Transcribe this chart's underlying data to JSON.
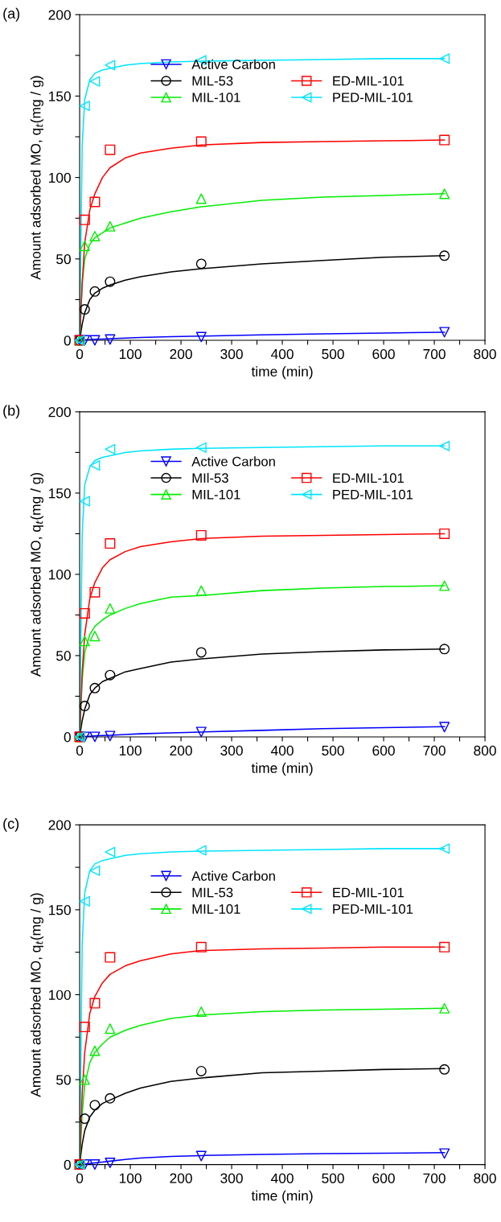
{
  "chart_data": [
    {
      "type": "scatter",
      "title": "(a)",
      "xlabel": "time (min)",
      "ylabel": "Amount adsorbed MO, q$_{t}$(mg / g)",
      "xlim": [
        0,
        800
      ],
      "ylim": [
        0,
        200
      ],
      "xticks": [
        0,
        {
          "value": 50,
          "label": null
        },
        100,
        {
          "value": 150,
          "label": null
        },
        200,
        {
          "value": 250,
          "label": null
        },
        300,
        {
          "value": 350,
          "label": null
        },
        400,
        {
          "value": 450,
          "label": null
        },
        500,
        {
          "value": 550,
          "label": null
        },
        600,
        {
          "value": 650,
          "label": null
        },
        700,
        {
          "value": 750,
          "label": null
        },
        800
      ],
      "yticks": [
        0,
        {
          "value": 25,
          "label": null
        },
        50,
        {
          "value": 75,
          "label": null
        },
        100,
        {
          "value": 125,
          "label": null
        },
        150,
        {
          "value": 175,
          "label": null
        },
        200
      ],
      "legend": "top",
      "grid": false,
      "series": [
        {
          "name": "Active Carbon",
          "color": "#0000ff",
          "marker": "triangle_down",
          "x": [
            0,
            10,
            30,
            60,
            240,
            720
          ],
          "values": [
            0,
            0,
            0,
            0.5,
            2,
            5
          ]
        },
        {
          "name": "MIL-53",
          "color": "#000000",
          "marker": "circle",
          "x": [
            0,
            10,
            30,
            60,
            240,
            720
          ],
          "values": [
            0,
            19,
            30,
            36,
            47,
            52
          ]
        },
        {
          "name": "MIL-101",
          "color": "#00ee00",
          "marker": "triangle",
          "x": [
            0,
            10,
            30,
            60,
            240,
            720
          ],
          "values": [
            0,
            58,
            64,
            70,
            87,
            90
          ]
        },
        {
          "name": "ED-MIL-101",
          "color": "#ff0000",
          "marker": "square",
          "x": [
            0,
            10,
            30,
            60,
            240,
            720
          ],
          "values": [
            0,
            74,
            85,
            117,
            122,
            123
          ]
        },
        {
          "name": "PED-MIL-101",
          "color": "#00e5ff",
          "marker": "triangle_left",
          "x": [
            0,
            10,
            30,
            60,
            240,
            720
          ],
          "values": [
            0,
            144,
            159,
            169,
            172,
            173
          ]
        },
        {
          "type": "line",
          "color": "#0000ff",
          "x": [
            0,
            5,
            10,
            20,
            30,
            45,
            60,
            90,
            120,
            180,
            240,
            360,
            480,
            600,
            720
          ],
          "values": [
            0,
            0.1,
            0.2,
            0.4,
            0.6,
            0.8,
            1,
            1.4,
            1.7,
            2.2,
            2.6,
            3.4,
            4,
            4.5,
            5
          ]
        },
        {
          "type": "line",
          "color": "#000000",
          "x": [
            0,
            5,
            10,
            20,
            30,
            45,
            60,
            90,
            120,
            180,
            240,
            360,
            480,
            600,
            720
          ],
          "values": [
            0,
            10,
            17,
            25,
            29,
            32,
            34,
            37,
            39,
            42,
            44,
            47,
            49,
            51,
            52
          ]
        },
        {
          "type": "line",
          "color": "#00ee00",
          "x": [
            0,
            5,
            10,
            20,
            30,
            45,
            60,
            90,
            120,
            180,
            240,
            360,
            480,
            600,
            720
          ],
          "values": [
            0,
            35,
            50,
            59,
            63,
            66,
            69,
            72,
            75,
            79,
            82,
            86,
            88,
            89,
            90
          ]
        },
        {
          "type": "line",
          "color": "#ff0000",
          "x": [
            0,
            5,
            10,
            20,
            30,
            45,
            60,
            90,
            120,
            180,
            240,
            360,
            480,
            600,
            720
          ],
          "values": [
            0,
            35,
            60,
            80,
            90,
            100,
            106,
            112,
            115,
            118,
            120,
            121.5,
            122,
            122.5,
            123
          ]
        },
        {
          "type": "line",
          "color": "#00e5ff",
          "x": [
            0,
            5,
            10,
            20,
            30,
            45,
            60,
            90,
            120,
            180,
            240,
            360,
            480,
            600,
            720
          ],
          "values": [
            0,
            120,
            148,
            160,
            164,
            166,
            167,
            169,
            170,
            171,
            171.5,
            172,
            172.5,
            173,
            173
          ]
        }
      ]
    },
    {
      "type": "scatter",
      "title": "(b)",
      "xlabel": "time (min)",
      "ylabel": "Amount adsorbed MO, q$_{t}$(mg / g)",
      "xlim": [
        0,
        800
      ],
      "ylim": [
        0,
        200
      ],
      "xticks": [
        0,
        {
          "value": 50,
          "label": null
        },
        100,
        {
          "value": 150,
          "label": null
        },
        200,
        {
          "value": 250,
          "label": null
        },
        300,
        {
          "value": 350,
          "label": null
        },
        400,
        {
          "value": 450,
          "label": null
        },
        500,
        {
          "value": 550,
          "label": null
        },
        600,
        {
          "value": 650,
          "label": null
        },
        700,
        {
          "value": 750,
          "label": null
        },
        800
      ],
      "yticks": [
        0,
        {
          "value": 25,
          "label": null
        },
        50,
        {
          "value": 75,
          "label": null
        },
        100,
        {
          "value": 125,
          "label": null
        },
        150,
        {
          "value": 175,
          "label": null
        },
        200
      ],
      "legend": "top",
      "grid": false,
      "series": [
        {
          "name": "Active Carbon",
          "color": "#0000ff",
          "marker": "triangle_down",
          "x": [
            0,
            10,
            30,
            60,
            240,
            720
          ],
          "values": [
            0,
            0,
            0,
            0.5,
            3,
            6
          ]
        },
        {
          "name": "MIl-53",
          "color": "#000000",
          "marker": "circle",
          "x": [
            0,
            10,
            30,
            60,
            240,
            720
          ],
          "values": [
            0,
            19,
            30,
            38,
            52,
            54
          ]
        },
        {
          "name": "MIL-101",
          "color": "#00ee00",
          "marker": "triangle",
          "x": [
            0,
            10,
            30,
            60,
            240,
            720
          ],
          "values": [
            0,
            59,
            62,
            79,
            90,
            93
          ]
        },
        {
          "name": "ED-MIL-101",
          "color": "#ff0000",
          "marker": "square",
          "x": [
            0,
            10,
            30,
            60,
            240,
            720
          ],
          "values": [
            0,
            76,
            89,
            119,
            124,
            125
          ]
        },
        {
          "name": "PED-MIL-101",
          "color": "#00e5ff",
          "marker": "triangle_left",
          "x": [
            0,
            10,
            30,
            60,
            240,
            720
          ],
          "values": [
            0,
            145,
            167,
            177,
            178,
            179
          ]
        },
        {
          "type": "line",
          "color": "#0000ff",
          "x": [
            0,
            5,
            10,
            20,
            30,
            45,
            60,
            90,
            120,
            180,
            240,
            360,
            480,
            600,
            720
          ],
          "values": [
            0,
            0.1,
            0.2,
            0.4,
            0.6,
            0.8,
            1,
            1.5,
            1.9,
            2.5,
            3,
            4,
            5,
            5.7,
            6.3
          ]
        },
        {
          "type": "line",
          "color": "#000000",
          "x": [
            0,
            5,
            10,
            20,
            30,
            45,
            60,
            90,
            120,
            180,
            240,
            360,
            480,
            600,
            720
          ],
          "values": [
            0,
            10,
            17,
            26,
            30,
            34,
            36,
            40,
            42,
            46,
            48,
            51,
            52.5,
            53.5,
            54
          ]
        },
        {
          "type": "line",
          "color": "#00ee00",
          "x": [
            0,
            5,
            10,
            20,
            30,
            45,
            60,
            90,
            120,
            180,
            240,
            360,
            480,
            600,
            720
          ],
          "values": [
            0,
            35,
            52,
            63,
            68,
            72,
            75,
            79,
            82,
            86,
            87,
            90,
            91.5,
            92.5,
            93
          ]
        },
        {
          "type": "line",
          "color": "#ff0000",
          "x": [
            0,
            5,
            10,
            20,
            30,
            45,
            60,
            90,
            120,
            180,
            240,
            360,
            480,
            600,
            720
          ],
          "values": [
            0,
            40,
            63,
            85,
            95,
            104,
            109,
            114,
            117,
            120,
            122,
            123.5,
            124,
            124.5,
            125
          ]
        },
        {
          "type": "line",
          "color": "#00e5ff",
          "x": [
            0,
            5,
            10,
            20,
            30,
            45,
            60,
            90,
            120,
            180,
            240,
            360,
            480,
            600,
            720
          ],
          "values": [
            0,
            125,
            155,
            166,
            170,
            172,
            173,
            175,
            176,
            177,
            177.5,
            178,
            178.5,
            179,
            179
          ]
        }
      ]
    },
    {
      "type": "scatter",
      "title": "(c)",
      "xlabel": "time (min)",
      "ylabel": "Amount adsorbed MO, q$_{t}$(mg / g)",
      "xlim": [
        0,
        800
      ],
      "ylim": [
        0,
        200
      ],
      "xticks": [
        0,
        {
          "value": 50,
          "label": null
        },
        100,
        {
          "value": 150,
          "label": null
        },
        200,
        {
          "value": 250,
          "label": null
        },
        300,
        {
          "value": 350,
          "label": null
        },
        400,
        {
          "value": 450,
          "label": null
        },
        500,
        {
          "value": 550,
          "label": null
        },
        600,
        {
          "value": 650,
          "label": null
        },
        700,
        {
          "value": 750,
          "label": null
        },
        800
      ],
      "yticks": [
        0,
        {
          "value": 25,
          "label": null
        },
        50,
        {
          "value": 75,
          "label": null
        },
        100,
        {
          "value": 125,
          "label": null
        },
        150,
        {
          "value": 175,
          "label": null
        },
        200
      ],
      "legend": "top",
      "grid": false,
      "series": [
        {
          "name": "Active Carbon",
          "color": "#0000ff",
          "marker": "triangle_down",
          "x": [
            0,
            10,
            30,
            60,
            240,
            720
          ],
          "values": [
            0,
            0,
            0,
            1,
            5,
            6.5
          ]
        },
        {
          "name": "MIL-53",
          "color": "#000000",
          "marker": "circle",
          "x": [
            0,
            10,
            30,
            60,
            240,
            720
          ],
          "values": [
            0,
            27,
            35,
            39,
            55,
            56
          ]
        },
        {
          "name": "MIL-101",
          "color": "#00ee00",
          "marker": "triangle",
          "x": [
            0,
            10,
            30,
            60,
            240,
            720
          ],
          "values": [
            0,
            50,
            67,
            80,
            90,
            92
          ]
        },
        {
          "name": "ED-MIL-101",
          "color": "#ff0000",
          "marker": "square",
          "x": [
            0,
            10,
            30,
            60,
            240,
            720
          ],
          "values": [
            0,
            81,
            95,
            122,
            128,
            128
          ]
        },
        {
          "name": "PED-MIL-101",
          "color": "#00e5ff",
          "marker": "triangle_left",
          "x": [
            0,
            10,
            30,
            60,
            240,
            720
          ],
          "values": [
            0,
            155,
            173,
            184,
            185,
            186
          ]
        },
        {
          "type": "line",
          "color": "#0000ff",
          "x": [
            0,
            5,
            10,
            20,
            30,
            45,
            60,
            90,
            120,
            180,
            240,
            360,
            480,
            600,
            720
          ],
          "values": [
            0,
            0.1,
            0.3,
            0.6,
            1,
            1.5,
            2,
            3,
            3.8,
            4.8,
            5.3,
            6,
            6.4,
            6.7,
            7
          ]
        },
        {
          "type": "line",
          "color": "#000000",
          "x": [
            0,
            5,
            10,
            20,
            30,
            45,
            60,
            90,
            120,
            180,
            240,
            360,
            480,
            600,
            720
          ],
          "values": [
            0,
            12,
            20,
            28,
            32,
            36,
            38,
            42,
            45,
            49,
            51,
            54,
            55,
            56,
            56.5
          ]
        },
        {
          "type": "line",
          "color": "#00ee00",
          "x": [
            0,
            5,
            10,
            20,
            30,
            45,
            60,
            90,
            120,
            180,
            240,
            360,
            480,
            600,
            720
          ],
          "values": [
            0,
            30,
            47,
            60,
            66,
            71,
            75,
            79,
            82,
            86,
            88,
            90,
            91,
            91.5,
            92
          ]
        },
        {
          "type": "line",
          "color": "#ff0000",
          "x": [
            0,
            5,
            10,
            20,
            30,
            45,
            60,
            90,
            120,
            180,
            240,
            360,
            480,
            600,
            720
          ],
          "values": [
            0,
            42,
            66,
            89,
            99,
            107,
            112,
            117,
            120,
            124,
            126,
            127,
            127.5,
            128,
            128
          ]
        },
        {
          "type": "line",
          "color": "#00e5ff",
          "x": [
            0,
            5,
            10,
            20,
            30,
            45,
            60,
            90,
            120,
            180,
            240,
            360,
            480,
            600,
            720
          ],
          "values": [
            0,
            130,
            160,
            173,
            177,
            179,
            180,
            182,
            183,
            184,
            184.5,
            185,
            185.5,
            186,
            186
          ]
        }
      ]
    }
  ]
}
